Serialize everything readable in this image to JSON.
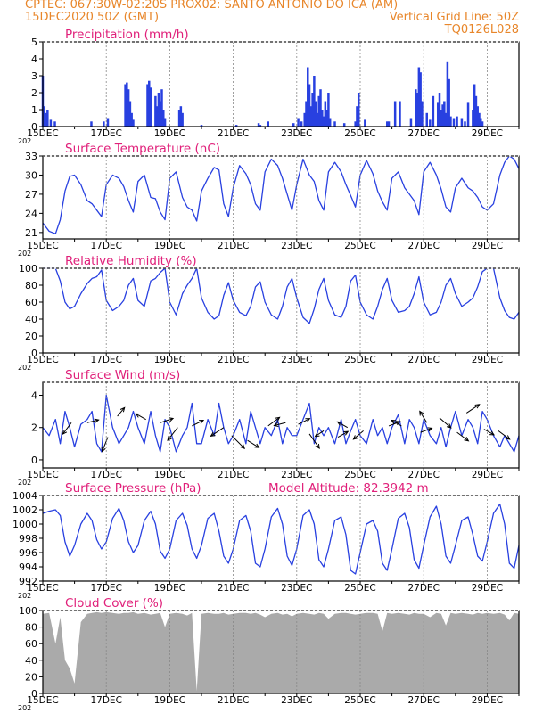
{
  "header": {
    "line1_left": "CPTEC:   067:30W-02:20S   PROX02: SANTO ANTONIO DO ICA (AM)",
    "line2_left": "15DEC2020 50Z (GMT)",
    "line2_right": "Vertical Grid Line: 50Z",
    "line3_right": "TQ0126L028"
  },
  "colors": {
    "header": "#e8862a",
    "title": "#e0207a",
    "series": "#2840e0",
    "bar": "#2840e0",
    "cloud": "#aaaaaa",
    "grid": "#888888",
    "arrow": "#000000"
  },
  "x_axis": {
    "labels": [
      "15DEC",
      "17DEC",
      "19DEC",
      "21DEC",
      "23DEC",
      "25DEC",
      "27DEC",
      "29DEC"
    ],
    "label_days": [
      0,
      2,
      4,
      6,
      8,
      10,
      12,
      14
    ],
    "total_days": 15,
    "stub_label": "202"
  },
  "chart_data": [
    {
      "type": "bar",
      "title": "Precipitation (mm/h)",
      "ylim": [
        0,
        5
      ],
      "yticks": [
        0,
        1,
        2,
        3,
        4,
        5
      ],
      "x_unit": "days since 15DEC2020 00Z",
      "x": [
        0.0,
        0.05,
        0.12,
        0.15,
        0.25,
        0.38,
        1.53,
        1.92,
        2.05,
        2.6,
        2.65,
        2.7,
        2.75,
        2.8,
        2.85,
        3.3,
        3.35,
        3.4,
        3.55,
        3.6,
        3.65,
        3.7,
        3.75,
        3.8,
        3.85,
        4.3,
        4.35,
        4.4,
        5.0,
        6.1,
        6.8,
        6.85,
        7.1,
        7.9,
        8.05,
        8.15,
        8.25,
        8.3,
        8.35,
        8.4,
        8.45,
        8.5,
        8.55,
        8.6,
        8.65,
        8.7,
        8.75,
        8.8,
        8.85,
        8.9,
        8.95,
        9.0,
        9.05,
        9.2,
        9.5,
        9.85,
        9.9,
        9.95,
        10.15,
        10.85,
        10.9,
        11.1,
        11.25,
        11.6,
        11.75,
        11.8,
        11.85,
        11.9,
        11.95,
        12.1,
        12.2,
        12.3,
        12.45,
        12.5,
        12.55,
        12.6,
        12.65,
        12.7,
        12.75,
        12.8,
        12.85,
        12.95,
        13.05,
        13.2,
        13.3,
        13.4,
        13.55,
        13.6,
        13.65,
        13.7,
        13.75,
        13.8,
        13.85
      ],
      "values": [
        3.0,
        1.2,
        0.8,
        1.0,
        0.4,
        0.3,
        0.3,
        0.3,
        0.5,
        2.5,
        2.6,
        2.2,
        1.5,
        0.8,
        0.4,
        2.5,
        2.7,
        2.3,
        1.8,
        1.2,
        2.0,
        1.5,
        2.2,
        1.0,
        0.5,
        1.0,
        1.2,
        0.8,
        0.1,
        0.1,
        0.2,
        0.1,
        0.3,
        0.2,
        0.5,
        0.3,
        0.8,
        1.5,
        3.5,
        2.5,
        1.2,
        2.0,
        3.0,
        1.5,
        0.8,
        1.8,
        2.2,
        1.0,
        0.6,
        1.5,
        1.0,
        2.0,
        0.5,
        0.3,
        0.2,
        0.3,
        1.2,
        2.0,
        0.4,
        0.3,
        0.3,
        1.5,
        1.5,
        0.5,
        2.2,
        2.0,
        3.5,
        3.2,
        1.5,
        0.8,
        0.4,
        1.8,
        1.4,
        2.0,
        1.0,
        1.3,
        1.5,
        0.8,
        3.8,
        2.8,
        0.6,
        0.5,
        0.6,
        0.5,
        0.3,
        1.4,
        1.0,
        2.5,
        1.8,
        1.2,
        0.8,
        0.5,
        0.3
      ]
    },
    {
      "type": "line",
      "title": "Surface Temperature (nC)",
      "ylim": [
        20,
        33
      ],
      "yticks": [
        21,
        24,
        27,
        30,
        33
      ],
      "x_unit": "days since 15DEC2020 00Z",
      "x": [
        0,
        0.2,
        0.4,
        0.55,
        0.7,
        0.85,
        1.0,
        1.2,
        1.4,
        1.55,
        1.7,
        1.85,
        2.0,
        2.2,
        2.4,
        2.55,
        2.7,
        2.85,
        3.0,
        3.2,
        3.4,
        3.55,
        3.7,
        3.85,
        4.0,
        4.2,
        4.4,
        4.55,
        4.7,
        4.85,
        5.0,
        5.2,
        5.4,
        5.55,
        5.7,
        5.85,
        6.0,
        6.2,
        6.4,
        6.55,
        6.7,
        6.85,
        7.0,
        7.2,
        7.4,
        7.55,
        7.7,
        7.85,
        8.0,
        8.2,
        8.4,
        8.55,
        8.7,
        8.85,
        9.0,
        9.2,
        9.4,
        9.55,
        9.7,
        9.85,
        10.0,
        10.2,
        10.4,
        10.55,
        10.7,
        10.85,
        11.0,
        11.2,
        11.4,
        11.55,
        11.7,
        11.85,
        12.0,
        12.2,
        12.4,
        12.55,
        12.7,
        12.85,
        13.0,
        13.2,
        13.4,
        13.55,
        13.7,
        13.85,
        14.0,
        14.2,
        14.4,
        14.55,
        14.7,
        14.85,
        15.0
      ],
      "values": [
        22.5,
        21.2,
        20.8,
        23.0,
        27.5,
        29.8,
        30.0,
        28.5,
        26.0,
        25.5,
        24.5,
        23.5,
        28.5,
        30.0,
        29.5,
        28.2,
        26.0,
        24.2,
        29.0,
        30.0,
        26.5,
        26.3,
        24.2,
        23.0,
        29.5,
        30.5,
        26.5,
        25.0,
        24.5,
        22.8,
        27.5,
        29.5,
        31.2,
        30.8,
        25.5,
        23.5,
        28.0,
        31.5,
        30.2,
        28.5,
        25.5,
        24.5,
        30.5,
        32.5,
        31.5,
        29.5,
        27.0,
        24.5,
        28.5,
        32.5,
        30.0,
        29.0,
        26.0,
        24.5,
        30.5,
        32.0,
        30.5,
        28.5,
        26.8,
        25.0,
        30.0,
        32.3,
        30.2,
        27.5,
        25.8,
        24.5,
        29.5,
        30.5,
        28.0,
        27.0,
        26.0,
        23.8,
        30.5,
        32.0,
        30.0,
        27.8,
        25.0,
        24.2,
        28.0,
        29.5,
        28.0,
        27.5,
        26.5,
        25.0,
        24.5,
        25.5,
        30.0,
        32.0,
        33.0,
        32.5,
        31.0
      ]
    },
    {
      "type": "line",
      "title": "Relative Humidity (%)",
      "ylim": [
        0,
        100
      ],
      "yticks": [
        0,
        20,
        40,
        60,
        80,
        100
      ],
      "x_unit": "days since 15DEC2020 00Z",
      "x": [
        0,
        0.2,
        0.4,
        0.55,
        0.7,
        0.85,
        1.0,
        1.2,
        1.4,
        1.55,
        1.7,
        1.85,
        2.0,
        2.2,
        2.4,
        2.55,
        2.7,
        2.85,
        3.0,
        3.2,
        3.4,
        3.55,
        3.7,
        3.85,
        4.0,
        4.2,
        4.4,
        4.55,
        4.7,
        4.85,
        5.0,
        5.2,
        5.4,
        5.55,
        5.7,
        5.85,
        6.0,
        6.2,
        6.4,
        6.55,
        6.7,
        6.85,
        7.0,
        7.2,
        7.4,
        7.55,
        7.7,
        7.85,
        8.0,
        8.2,
        8.4,
        8.55,
        8.7,
        8.85,
        9.0,
        9.2,
        9.4,
        9.55,
        9.7,
        9.85,
        10.0,
        10.2,
        10.4,
        10.55,
        10.7,
        10.85,
        11.0,
        11.2,
        11.4,
        11.55,
        11.7,
        11.85,
        12.0,
        12.2,
        12.4,
        12.55,
        12.7,
        12.85,
        13.0,
        13.2,
        13.4,
        13.55,
        13.7,
        13.85,
        14.0,
        14.2,
        14.4,
        14.55,
        14.7,
        14.85,
        15.0
      ],
      "values": [
        100,
        100,
        100,
        85,
        60,
        52,
        55,
        70,
        82,
        88,
        90,
        98,
        62,
        50,
        55,
        62,
        80,
        88,
        62,
        55,
        85,
        88,
        95,
        100,
        60,
        45,
        70,
        80,
        88,
        100,
        65,
        48,
        40,
        44,
        68,
        83,
        62,
        48,
        44,
        55,
        78,
        84,
        60,
        45,
        40,
        55,
        78,
        88,
        65,
        42,
        35,
        52,
        75,
        88,
        62,
        45,
        42,
        55,
        85,
        92,
        60,
        45,
        40,
        55,
        75,
        88,
        62,
        48,
        50,
        55,
        70,
        90,
        60,
        45,
        48,
        60,
        80,
        88,
        70,
        55,
        60,
        65,
        78,
        96,
        100,
        100,
        65,
        50,
        42,
        40,
        48
      ]
    },
    {
      "type": "line",
      "title": "Surface Wind (m/s)",
      "ylim": [
        -0.5,
        4.8
      ],
      "yticks": [
        0,
        2,
        4
      ],
      "x_unit": "days since 15DEC2020 00Z",
      "x": [
        0,
        0.2,
        0.4,
        0.55,
        0.7,
        0.85,
        1.0,
        1.2,
        1.4,
        1.55,
        1.7,
        1.85,
        2.0,
        2.2,
        2.4,
        2.55,
        2.7,
        2.85,
        3.0,
        3.2,
        3.4,
        3.55,
        3.7,
        3.85,
        4.0,
        4.2,
        4.4,
        4.55,
        4.7,
        4.85,
        5.0,
        5.2,
        5.4,
        5.55,
        5.7,
        5.85,
        6.0,
        6.2,
        6.4,
        6.55,
        6.7,
        6.85,
        7.0,
        7.2,
        7.4,
        7.55,
        7.7,
        7.85,
        8.0,
        8.2,
        8.4,
        8.55,
        8.7,
        8.85,
        9.0,
        9.2,
        9.4,
        9.55,
        9.7,
        9.85,
        10.0,
        10.2,
        10.4,
        10.55,
        10.7,
        10.85,
        11.0,
        11.2,
        11.4,
        11.55,
        11.7,
        11.85,
        12.0,
        12.2,
        12.4,
        12.55,
        12.7,
        12.85,
        13.0,
        13.2,
        13.4,
        13.55,
        13.7,
        13.85,
        14.0,
        14.2,
        14.4,
        14.55,
        14.7,
        14.85,
        15.0
      ],
      "values": [
        2.0,
        1.5,
        2.5,
        1.0,
        3.0,
        2.0,
        0.8,
        2.2,
        2.5,
        3.0,
        1.0,
        0.5,
        4.0,
        2.0,
        1.0,
        1.5,
        2.0,
        3.0,
        2.0,
        1.0,
        3.0,
        1.5,
        0.5,
        2.5,
        2.0,
        0.5,
        1.5,
        2.0,
        3.5,
        1.0,
        1.0,
        2.5,
        1.5,
        3.5,
        2.0,
        1.0,
        1.5,
        2.5,
        1.0,
        3.0,
        2.0,
        1.0,
        2.0,
        1.5,
        2.5,
        1.0,
        2.0,
        1.5,
        1.5,
        2.5,
        3.5,
        1.0,
        2.0,
        1.5,
        2.0,
        1.0,
        2.5,
        1.0,
        1.8,
        2.5,
        1.5,
        1.0,
        2.5,
        1.5,
        2.0,
        1.0,
        2.0,
        2.8,
        1.0,
        2.5,
        2.0,
        1.0,
        2.5,
        1.5,
        1.0,
        2.0,
        0.8,
        2.0,
        3.0,
        1.5,
        2.5,
        2.0,
        1.0,
        3.0,
        2.5,
        1.5,
        0.8,
        1.5,
        1.0,
        0.5,
        1.5
      ],
      "arrows": {
        "x": [
          0.9,
          1.4,
          2.05,
          2.35,
          3.25,
          3.7,
          4.25,
          4.7,
          5.7,
          5.95,
          6.45,
          7.1,
          7.65,
          8.05,
          8.4,
          8.85,
          9.3,
          9.6,
          10.1,
          10.9,
          11.3,
          11.9,
          12.1,
          12.5,
          13.05,
          13.35,
          13.9,
          14.35
        ],
        "y": [
          2.3,
          2.3,
          1.4,
          2.7,
          2.5,
          2.3,
          2.0,
          2.1,
          2.0,
          1.5,
          1.2,
          2.1,
          2.3,
          2.2,
          1.6,
          1.8,
          1.4,
          2.0,
          1.8,
          2.1,
          2.1,
          1.7,
          2.3,
          2.6,
          1.7,
          2.9,
          1.9,
          1.8
        ],
        "u": [
          -0.6,
          0.8,
          -0.4,
          0.5,
          -0.7,
          0.9,
          -0.7,
          0.8,
          -0.9,
          0.9,
          0.8,
          0.8,
          -0.8,
          0.8,
          0.7,
          -0.6,
          0.7,
          -0.7,
          -0.7,
          0.8,
          -0.7,
          0.8,
          -0.5,
          0.8,
          0.8,
          0.9,
          0.7,
          0.8
        ],
        "v": [
          -0.8,
          0.2,
          -1.0,
          0.6,
          0.4,
          0.3,
          -0.9,
          0.4,
          -0.6,
          -0.9,
          -0.5,
          0.6,
          -0.2,
          0.4,
          -1.0,
          -0.4,
          0.4,
          0.4,
          -0.6,
          0.3,
          0.4,
          0.3,
          0.8,
          -0.7,
          -0.6,
          0.6,
          -0.4,
          -0.6
        ]
      }
    },
    {
      "type": "line",
      "title": "Surface Pressure (hPa)",
      "annotation": "Model Altitude: 82.3942 m",
      "ylim": [
        992,
        1004
      ],
      "yticks": [
        992,
        994,
        996,
        998,
        1000,
        1002,
        1004
      ],
      "x_unit": "days since 15DEC2020 00Z",
      "x": [
        0,
        0.2,
        0.4,
        0.55,
        0.7,
        0.85,
        1.0,
        1.2,
        1.4,
        1.55,
        1.7,
        1.85,
        2.0,
        2.2,
        2.4,
        2.55,
        2.7,
        2.85,
        3.0,
        3.2,
        3.4,
        3.55,
        3.7,
        3.85,
        4.0,
        4.2,
        4.4,
        4.55,
        4.7,
        4.85,
        5.0,
        5.2,
        5.4,
        5.55,
        5.7,
        5.85,
        6.0,
        6.2,
        6.4,
        6.55,
        6.7,
        6.85,
        7.0,
        7.2,
        7.4,
        7.55,
        7.7,
        7.85,
        8.0,
        8.2,
        8.4,
        8.55,
        8.7,
        8.85,
        9.0,
        9.2,
        9.4,
        9.55,
        9.7,
        9.85,
        10.0,
        10.2,
        10.4,
        10.55,
        10.7,
        10.85,
        11.0,
        11.2,
        11.4,
        11.55,
        11.7,
        11.85,
        12.0,
        12.2,
        12.4,
        12.55,
        12.7,
        12.85,
        13.0,
        13.2,
        13.4,
        13.55,
        13.7,
        13.85,
        14.0,
        14.2,
        14.4,
        14.55,
        14.7,
        14.85,
        15.0
      ],
      "values": [
        1001.5,
        1001.8,
        1002.0,
        1001.2,
        997.5,
        995.5,
        997.0,
        1000.0,
        1001.5,
        1000.5,
        997.8,
        996.5,
        997.5,
        1000.8,
        1002.2,
        1000.5,
        997.5,
        996.0,
        997.0,
        1000.5,
        1001.8,
        1000.0,
        996.2,
        995.2,
        996.5,
        1000.5,
        1001.5,
        999.8,
        996.5,
        995.2,
        997.0,
        1000.8,
        1001.5,
        999.0,
        995.5,
        994.5,
        996.5,
        1000.5,
        1001.2,
        999.0,
        994.5,
        994.0,
        996.5,
        1001.0,
        1002.2,
        1000.0,
        995.5,
        994.2,
        996.5,
        1001.2,
        1002.0,
        1000.0,
        995.0,
        994.0,
        996.5,
        1000.5,
        1001.0,
        998.5,
        993.5,
        993.0,
        996.0,
        1000.0,
        1000.5,
        999.0,
        994.5,
        993.5,
        996.5,
        1000.8,
        1001.5,
        999.5,
        995.0,
        993.8,
        997.0,
        1001.0,
        1002.5,
        1000.0,
        995.5,
        994.5,
        997.0,
        1000.5,
        1001.0,
        998.5,
        995.5,
        994.8,
        997.5,
        1001.5,
        1002.8,
        1000.0,
        994.5,
        993.8,
        997.0
      ]
    },
    {
      "type": "area",
      "title": "Cloud Cover (%)",
      "ylim": [
        0,
        100
      ],
      "yticks": [
        0,
        20,
        40,
        60,
        80,
        100
      ],
      "x_unit": "days since 15DEC2020 00Z",
      "x": [
        0,
        0.2,
        0.4,
        0.55,
        0.7,
        0.85,
        1.0,
        1.2,
        1.4,
        1.55,
        1.7,
        1.85,
        2.0,
        2.2,
        2.4,
        2.55,
        2.7,
        2.85,
        3.0,
        3.2,
        3.4,
        3.55,
        3.7,
        3.85,
        4.0,
        4.2,
        4.4,
        4.55,
        4.7,
        4.85,
        5.0,
        5.2,
        5.4,
        5.55,
        5.7,
        5.85,
        6.0,
        6.2,
        6.4,
        6.55,
        6.7,
        6.85,
        7.0,
        7.2,
        7.4,
        7.55,
        7.7,
        7.85,
        8.0,
        8.2,
        8.4,
        8.55,
        8.7,
        8.85,
        9.0,
        9.2,
        9.4,
        9.55,
        9.7,
        9.85,
        10.0,
        10.2,
        10.4,
        10.55,
        10.7,
        10.85,
        11.0,
        11.2,
        11.4,
        11.55,
        11.7,
        11.85,
        12.0,
        12.2,
        12.4,
        12.55,
        12.7,
        12.85,
        13.0,
        13.2,
        13.4,
        13.55,
        13.7,
        13.85,
        14.0,
        14.2,
        14.4,
        14.55,
        14.7,
        14.85,
        15.0
      ],
      "values": [
        96,
        97,
        60,
        92,
        40,
        30,
        12,
        86,
        96,
        97,
        98,
        97,
        98,
        97,
        96,
        97,
        97,
        98,
        96,
        97,
        95,
        96,
        97,
        80,
        96,
        97,
        96,
        94,
        97,
        3,
        96,
        97,
        96,
        96,
        97,
        95,
        96,
        97,
        97,
        96,
        97,
        95,
        92,
        96,
        97,
        95,
        96,
        93,
        96,
        97,
        96,
        95,
        97,
        96,
        90,
        96,
        97,
        97,
        96,
        95,
        96,
        97,
        97,
        96,
        75,
        97,
        96,
        97,
        96,
        95,
        97,
        96,
        96,
        92,
        97,
        96,
        82,
        97,
        96,
        97,
        96,
        95,
        97,
        96,
        97,
        96,
        97,
        95,
        88,
        97,
        96
      ]
    }
  ]
}
